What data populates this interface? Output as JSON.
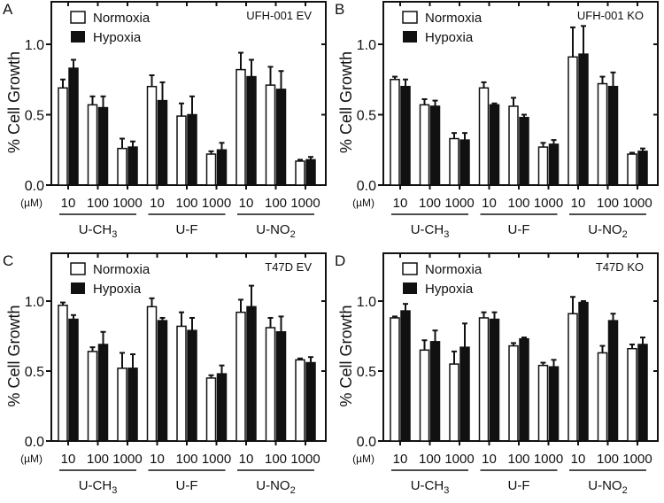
{
  "chart_data": {
    "type": "bar",
    "legend": [
      "Normoxia",
      "Hypoxia"
    ],
    "ylabel": "% Cell Growth",
    "ylim": [
      0,
      1.3
    ],
    "yticks": [
      "0.0",
      "0.5",
      "1.0"
    ],
    "unit_label": "(µM)",
    "concentrations": [
      "10",
      "100",
      "1000"
    ],
    "groups": [
      {
        "name": "U-CH",
        "sub": "3"
      },
      {
        "name": "U-F",
        "sub": ""
      },
      {
        "name": "U-NO",
        "sub": "2"
      }
    ],
    "panels": [
      {
        "letter": "A",
        "title": "UFH-001 EV",
        "series": [
          {
            "name": "Normoxia",
            "values": [
              0.69,
              0.57,
              0.26,
              0.7,
              0.49,
              0.22,
              0.82,
              0.71,
              0.17
            ],
            "errors": [
              0.06,
              0.06,
              0.07,
              0.08,
              0.09,
              0.02,
              0.12,
              0.13,
              0.01
            ]
          },
          {
            "name": "Hypoxia",
            "values": [
              0.83,
              0.55,
              0.27,
              0.6,
              0.5,
              0.25,
              0.77,
              0.68,
              0.18
            ],
            "errors": [
              0.06,
              0.08,
              0.04,
              0.13,
              0.13,
              0.05,
              0.12,
              0.13,
              0.02
            ]
          }
        ]
      },
      {
        "letter": "B",
        "title": "UFH-001 KO",
        "series": [
          {
            "name": "Normoxia",
            "values": [
              0.75,
              0.57,
              0.33,
              0.69,
              0.56,
              0.27,
              0.91,
              0.72,
              0.22
            ],
            "errors": [
              0.02,
              0.04,
              0.04,
              0.04,
              0.06,
              0.03,
              0.21,
              0.05,
              0.01
            ]
          },
          {
            "name": "Hypoxia",
            "values": [
              0.7,
              0.56,
              0.32,
              0.57,
              0.48,
              0.29,
              0.93,
              0.7,
              0.24
            ],
            "errors": [
              0.05,
              0.04,
              0.05,
              0.01,
              0.02,
              0.03,
              0.2,
              0.1,
              0.02
            ]
          }
        ]
      },
      {
        "letter": "C",
        "title": "T47D EV",
        "series": [
          {
            "name": "Normoxia",
            "values": [
              0.97,
              0.64,
              0.52,
              0.96,
              0.82,
              0.45,
              0.92,
              0.81,
              0.58
            ],
            "errors": [
              0.02,
              0.03,
              0.11,
              0.06,
              0.1,
              0.02,
              0.09,
              0.07,
              0.01
            ]
          },
          {
            "name": "Hypoxia",
            "values": [
              0.87,
              0.69,
              0.52,
              0.86,
              0.79,
              0.48,
              0.96,
              0.78,
              0.56
            ],
            "errors": [
              0.03,
              0.09,
              0.1,
              0.02,
              0.09,
              0.06,
              0.15,
              0.11,
              0.04
            ]
          }
        ]
      },
      {
        "letter": "D",
        "title": "T47D KO",
        "series": [
          {
            "name": "Normoxia",
            "values": [
              0.88,
              0.65,
              0.55,
              0.88,
              0.68,
              0.54,
              0.91,
              0.63,
              0.66
            ],
            "errors": [
              0.01,
              0.07,
              0.09,
              0.04,
              0.02,
              0.02,
              0.12,
              0.05,
              0.03
            ]
          },
          {
            "name": "Hypoxia",
            "values": [
              0.93,
              0.71,
              0.67,
              0.87,
              0.73,
              0.53,
              0.99,
              0.86,
              0.69
            ],
            "errors": [
              0.05,
              0.08,
              0.17,
              0.05,
              0.01,
              0.05,
              0.01,
              0.05,
              0.05
            ]
          }
        ]
      }
    ]
  }
}
